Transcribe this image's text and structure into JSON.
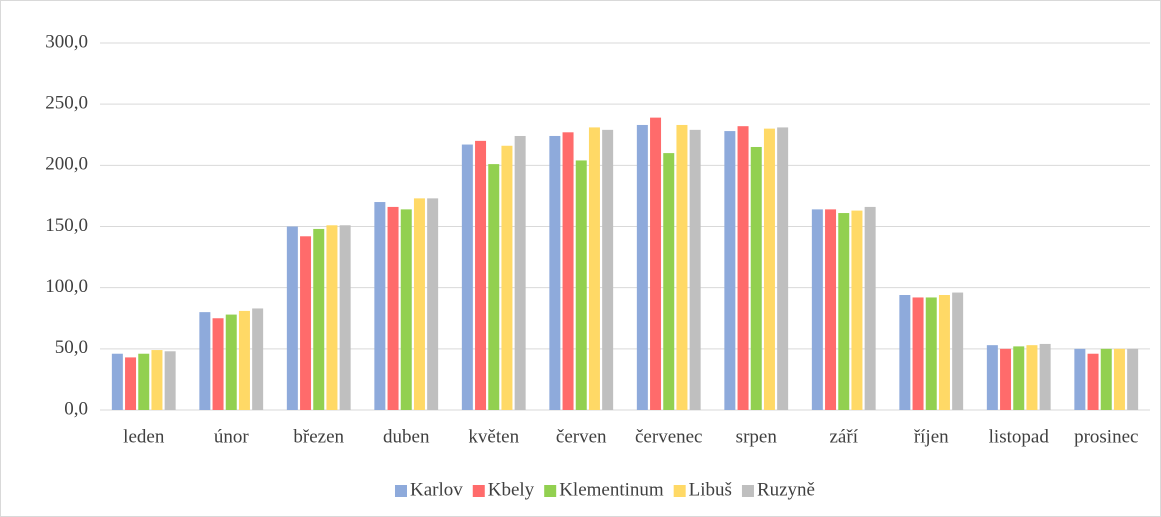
{
  "chart_data": {
    "type": "bar",
    "categories": [
      "leden",
      "únor",
      "březen",
      "duben",
      "květen",
      "červen",
      "červenec",
      "srpen",
      "září",
      "říjen",
      "listopad",
      "prosinec"
    ],
    "series": [
      {
        "name": "Karlov",
        "color": "#8eaadb",
        "values": [
          46,
          80,
          150,
          170,
          217,
          224,
          233,
          228,
          164,
          94,
          53,
          50
        ]
      },
      {
        "name": "Kbely",
        "color": "#ff6b6b",
        "values": [
          43,
          75,
          142,
          166,
          220,
          227,
          239,
          232,
          164,
          92,
          50,
          46
        ]
      },
      {
        "name": "Klementinum",
        "color": "#92d050",
        "values": [
          46,
          78,
          148,
          164,
          201,
          204,
          210,
          215,
          161,
          92,
          52,
          50
        ]
      },
      {
        "name": "Libuš",
        "color": "#ffd966",
        "values": [
          49,
          81,
          151,
          173,
          216,
          231,
          233,
          230,
          163,
          94,
          53,
          50
        ]
      },
      {
        "name": "Ruzyně",
        "color": "#bfbfbf",
        "values": [
          48,
          83,
          151,
          173,
          224,
          229,
          229,
          231,
          166,
          96,
          54,
          50
        ]
      }
    ],
    "ylim": [
      0,
      300
    ],
    "yticks": [
      {
        "value": 0,
        "label": "0,0"
      },
      {
        "value": 50,
        "label": "50,0"
      },
      {
        "value": 100,
        "label": "100,0"
      },
      {
        "value": 150,
        "label": "150,0"
      },
      {
        "value": 200,
        "label": "200,0"
      },
      {
        "value": 250,
        "label": "250,0"
      },
      {
        "value": 300,
        "label": "300,0"
      }
    ],
    "grid": true,
    "legend": "bottom"
  }
}
